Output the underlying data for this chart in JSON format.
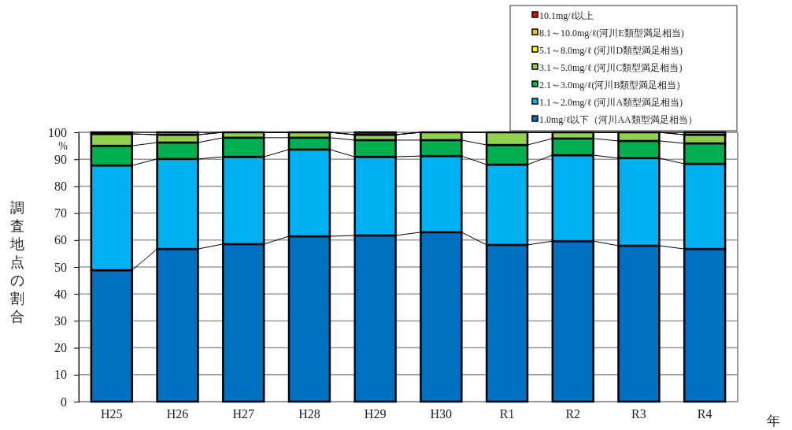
{
  "chart_data": {
    "type": "bar",
    "stacked": true,
    "ylabel": "調査地点の割合",
    "xlabel": "年",
    "annotations": [
      "%"
    ],
    "categories": [
      "H25",
      "H26",
      "H27",
      "H28",
      "H29",
      "H30",
      "R1",
      "R2",
      "R3",
      "R4"
    ],
    "series": [
      {
        "name": "1.0mg/ℓ以下（河川AA類型満足相当）",
        "color": "#0070c0",
        "values": [
          48.8,
          56.7,
          58.5,
          61.4,
          61.7,
          62.9,
          58.2,
          59.6,
          57.9,
          56.7
        ]
      },
      {
        "name": "1.1～2.0mg/ℓ (河川A類型満足相当)",
        "color": "#00b0f0",
        "values": [
          38.9,
          33.4,
          32.4,
          32.2,
          29.2,
          28.3,
          29.8,
          31.9,
          32.5,
          31.6
        ]
      },
      {
        "name": "2.1～3.0mg/ℓ(河川B類型満足相当)",
        "color": "#00b050",
        "values": [
          7.3,
          6.1,
          7.1,
          4.4,
          6.2,
          5.9,
          7.3,
          6.2,
          6.4,
          7.6
        ]
      },
      {
        "name": "3.1～5.0mg/ℓ (河川C類型満足相当)",
        "color": "#92d050",
        "values": [
          4.4,
          2.9,
          2.0,
          2.0,
          2.0,
          2.9,
          4.7,
          2.3,
          3.2,
          3.2
        ]
      },
      {
        "name": "5.1～8.0mg/ℓ (河川D類型満足相当)",
        "color": "#ffff00",
        "values": [
          0,
          0,
          0,
          0,
          0,
          0,
          0,
          0,
          0,
          0
        ]
      },
      {
        "name": "8.1～10.0mg/ℓ(河川E類型満足相当)",
        "color": "#ffc000",
        "values": [
          0.6,
          0.9,
          0,
          0,
          0,
          0,
          0,
          0,
          0,
          0.9
        ]
      },
      {
        "name": "10.1mg/ℓ以上",
        "color": "#ff0000",
        "values": [
          0,
          0,
          0,
          0,
          0.9,
          0,
          0,
          0,
          0,
          0
        ]
      }
    ],
    "ylim": [
      0,
      100
    ],
    "yticks": [
      0,
      10,
      20,
      30,
      40,
      50,
      60,
      70,
      80,
      90,
      100
    ],
    "grid": "y",
    "legend": "top right"
  }
}
